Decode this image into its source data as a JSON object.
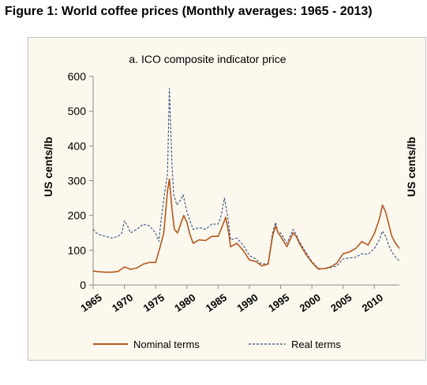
{
  "figure_title": "Figure 1: World coffee prices (Monthly averages: 1965 - 2013)",
  "chart_data": {
    "type": "line",
    "title": "a. ICO composite indicator price",
    "xlabel": "",
    "ylabel": "US cents/lb",
    "ylabel_right": "US cents/lb",
    "xlim": [
      1965,
      2014
    ],
    "ylim": [
      0,
      600
    ],
    "x_ticks": [
      "1965",
      "1970",
      "1975",
      "1980",
      "1985",
      "1990",
      "1995",
      "2000",
      "2005",
      "2010"
    ],
    "y_ticks": [
      "0",
      "100",
      "200",
      "300",
      "400",
      "500",
      "600"
    ],
    "legend_position": "bottom",
    "colors": {
      "nominal": "#b5581f",
      "real": "#2f4f80",
      "panel": "#fcf8ee"
    },
    "series": [
      {
        "name": "Nominal terms",
        "style": "solid",
        "points": [
          [
            1965,
            40
          ],
          [
            1966,
            38
          ],
          [
            1967,
            37
          ],
          [
            1968,
            37
          ],
          [
            1969,
            39
          ],
          [
            1970,
            52
          ],
          [
            1971,
            45
          ],
          [
            1972,
            49
          ],
          [
            1973,
            60
          ],
          [
            1974,
            65
          ],
          [
            1975,
            65
          ],
          [
            1975.8,
            115
          ],
          [
            1976.3,
            150
          ],
          [
            1976.9,
            270
          ],
          [
            1977.2,
            305
          ],
          [
            1977.6,
            220
          ],
          [
            1978,
            160
          ],
          [
            1978.5,
            150
          ],
          [
            1979,
            175
          ],
          [
            1979.5,
            200
          ],
          [
            1980,
            180
          ],
          [
            1980.5,
            145
          ],
          [
            1981,
            120
          ],
          [
            1982,
            130
          ],
          [
            1983,
            128
          ],
          [
            1984,
            140
          ],
          [
            1985,
            140
          ],
          [
            1985.8,
            175
          ],
          [
            1986.2,
            195
          ],
          [
            1986.7,
            150
          ],
          [
            1987,
            110
          ],
          [
            1988,
            120
          ],
          [
            1989,
            100
          ],
          [
            1990,
            72
          ],
          [
            1991,
            68
          ],
          [
            1992,
            55
          ],
          [
            1993,
            60
          ],
          [
            1993.7,
            140
          ],
          [
            1994.2,
            170
          ],
          [
            1994.6,
            150
          ],
          [
            1995,
            140
          ],
          [
            1996,
            110
          ],
          [
            1997,
            150
          ],
          [
            1997.5,
            140
          ],
          [
            1998,
            120
          ],
          [
            1999,
            90
          ],
          [
            2000,
            65
          ],
          [
            2001,
            46
          ],
          [
            2002,
            47
          ],
          [
            2003,
            52
          ],
          [
            2004,
            63
          ],
          [
            2005,
            90
          ],
          [
            2006,
            95
          ],
          [
            2007,
            105
          ],
          [
            2008,
            125
          ],
          [
            2009,
            115
          ],
          [
            2010,
            148
          ],
          [
            2010.8,
            190
          ],
          [
            2011.3,
            230
          ],
          [
            2011.8,
            210
          ],
          [
            2012.3,
            175
          ],
          [
            2012.8,
            140
          ],
          [
            2013.4,
            120
          ],
          [
            2014,
            105
          ]
        ]
      },
      {
        "name": "Real terms",
        "style": "dashed",
        "points": [
          [
            1965,
            160
          ],
          [
            1965.5,
            150
          ],
          [
            1966,
            145
          ],
          [
            1967,
            140
          ],
          [
            1968,
            135
          ],
          [
            1969,
            140
          ],
          [
            1969.6,
            150
          ],
          [
            1970,
            185
          ],
          [
            1970.5,
            170
          ],
          [
            1971,
            150
          ],
          [
            1972,
            160
          ],
          [
            1973,
            175
          ],
          [
            1974,
            170
          ],
          [
            1975,
            150
          ],
          [
            1975.5,
            125
          ],
          [
            1975.9,
            190
          ],
          [
            1976.4,
            260
          ],
          [
            1976.9,
            320
          ],
          [
            1977.2,
            565
          ],
          [
            1977.6,
            350
          ],
          [
            1977.9,
            260
          ],
          [
            1978.4,
            230
          ],
          [
            1979,
            245
          ],
          [
            1979.4,
            260
          ],
          [
            1980,
            210
          ],
          [
            1980.6,
            180
          ],
          [
            1981,
            160
          ],
          [
            1982,
            165
          ],
          [
            1983,
            160
          ],
          [
            1984,
            175
          ],
          [
            1985,
            175
          ],
          [
            1985.5,
            200
          ],
          [
            1986,
            250
          ],
          [
            1986.6,
            190
          ],
          [
            1987,
            130
          ],
          [
            1988,
            135
          ],
          [
            1989,
            115
          ],
          [
            1990,
            85
          ],
          [
            1991,
            75
          ],
          [
            1992,
            60
          ],
          [
            1993,
            62
          ],
          [
            1993.7,
            150
          ],
          [
            1994.2,
            180
          ],
          [
            1994.6,
            150
          ],
          [
            1995,
            150
          ],
          [
            1996,
            120
          ],
          [
            1997,
            160
          ],
          [
            1997.5,
            145
          ],
          [
            1998,
            125
          ],
          [
            1999,
            95
          ],
          [
            2000,
            68
          ],
          [
            2001,
            48
          ],
          [
            2002,
            47
          ],
          [
            2003,
            50
          ],
          [
            2004,
            55
          ],
          [
            2005,
            75
          ],
          [
            2006,
            78
          ],
          [
            2007,
            80
          ],
          [
            2008,
            90
          ],
          [
            2009,
            88
          ],
          [
            2010,
            105
          ],
          [
            2010.8,
            130
          ],
          [
            2011.3,
            155
          ],
          [
            2011.8,
            140
          ],
          [
            2012.3,
            115
          ],
          [
            2012.8,
            95
          ],
          [
            2013.4,
            80
          ],
          [
            2014,
            70
          ]
        ]
      }
    ]
  }
}
